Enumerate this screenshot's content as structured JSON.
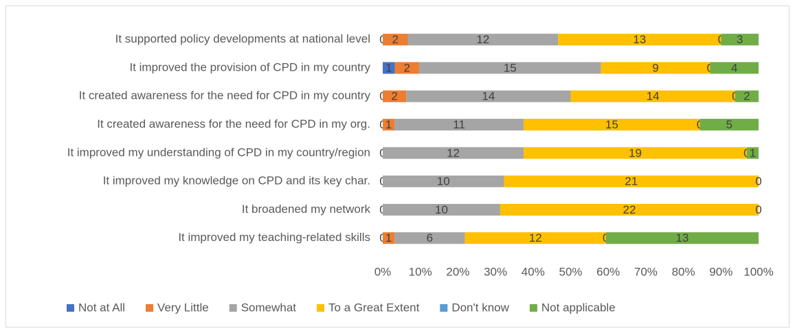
{
  "chart_data": {
    "type": "stacked_percent_barh",
    "categories": [
      "It supported policy developments at national level",
      "It improved the provision of CPD in my country",
      "It created awareness for the need for CPD in my country",
      "It created awareness for the need for CPD in my org.",
      "It improved my understanding of CPD in my country/region",
      "It improved my knowledge on CPD and its key char.",
      "It broadened my network",
      "It improved my teaching-related skills"
    ],
    "series": [
      {
        "name": "Not at All",
        "color": "#4472c4",
        "values": [
          0,
          1,
          0,
          0,
          0,
          0,
          0,
          0
        ]
      },
      {
        "name": "Very Little",
        "color": "#ed7d31",
        "values": [
          2,
          2,
          2,
          1,
          null,
          null,
          null,
          1
        ]
      },
      {
        "name": "Somewhat",
        "color": "#a5a5a5",
        "values": [
          12,
          15,
          14,
          11,
          12,
          10,
          10,
          6
        ]
      },
      {
        "name": "To a Great Extent",
        "color": "#ffc000",
        "values": [
          13,
          9,
          14,
          15,
          19,
          21,
          22,
          12
        ]
      },
      {
        "name": "Don't know",
        "color": "#5b9bd5",
        "values": [
          0,
          0,
          0,
          0,
          0,
          0,
          0,
          0
        ]
      },
      {
        "name": "Not applicable",
        "color": "#70ad47",
        "values": [
          3,
          4,
          2,
          5,
          1,
          null,
          null,
          13
        ]
      }
    ],
    "xlim": [
      0,
      100
    ],
    "xticks": [
      {
        "value": 0,
        "label": "0%"
      },
      {
        "value": 10,
        "label": "10%"
      },
      {
        "value": 20,
        "label": "20%"
      },
      {
        "value": 30,
        "label": "30%"
      },
      {
        "value": 40,
        "label": "40%"
      },
      {
        "value": 50,
        "label": "50%"
      },
      {
        "value": 60,
        "label": "60%"
      },
      {
        "value": 70,
        "label": "70%"
      },
      {
        "value": 80,
        "label": "80%"
      },
      {
        "value": 90,
        "label": "90%"
      },
      {
        "value": 100,
        "label": "100%"
      }
    ],
    "legend": "bottom"
  }
}
